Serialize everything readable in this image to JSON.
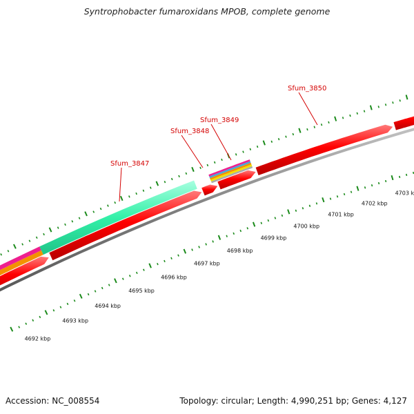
{
  "title": "Syntrophobacter fumaroxidans MPOB, complete genome",
  "footer": {
    "accession": "Accession: NC_008554",
    "summary": "Topology: circular; Length: 4,990,251 bp; Genes: 4,127"
  },
  "colors": {
    "cds": "#ff0000",
    "backbone": "#808080",
    "ticks": "#1a8a1a",
    "label": "#d40000",
    "feature_mint": "#33f0a8",
    "feature_magenta": "#ee1f8f",
    "feature_orange": "#f39200",
    "feature_yellow": "#f2e200",
    "feature_gray": "#aaaaaa"
  },
  "gene_labels": [
    "Sfum_3847",
    "Sfum_3848",
    "Sfum_3849",
    "Sfum_3850"
  ],
  "scale_labels": [
    "4692 kbp",
    "4693 kbp",
    "4694 kbp",
    "4695 kbp",
    "4696 kbp",
    "4697 kbp",
    "4698 kbp",
    "4699 kbp",
    "4700 kbp",
    "4701 kbp",
    "4702 kbp",
    "4703 kbp"
  ]
}
